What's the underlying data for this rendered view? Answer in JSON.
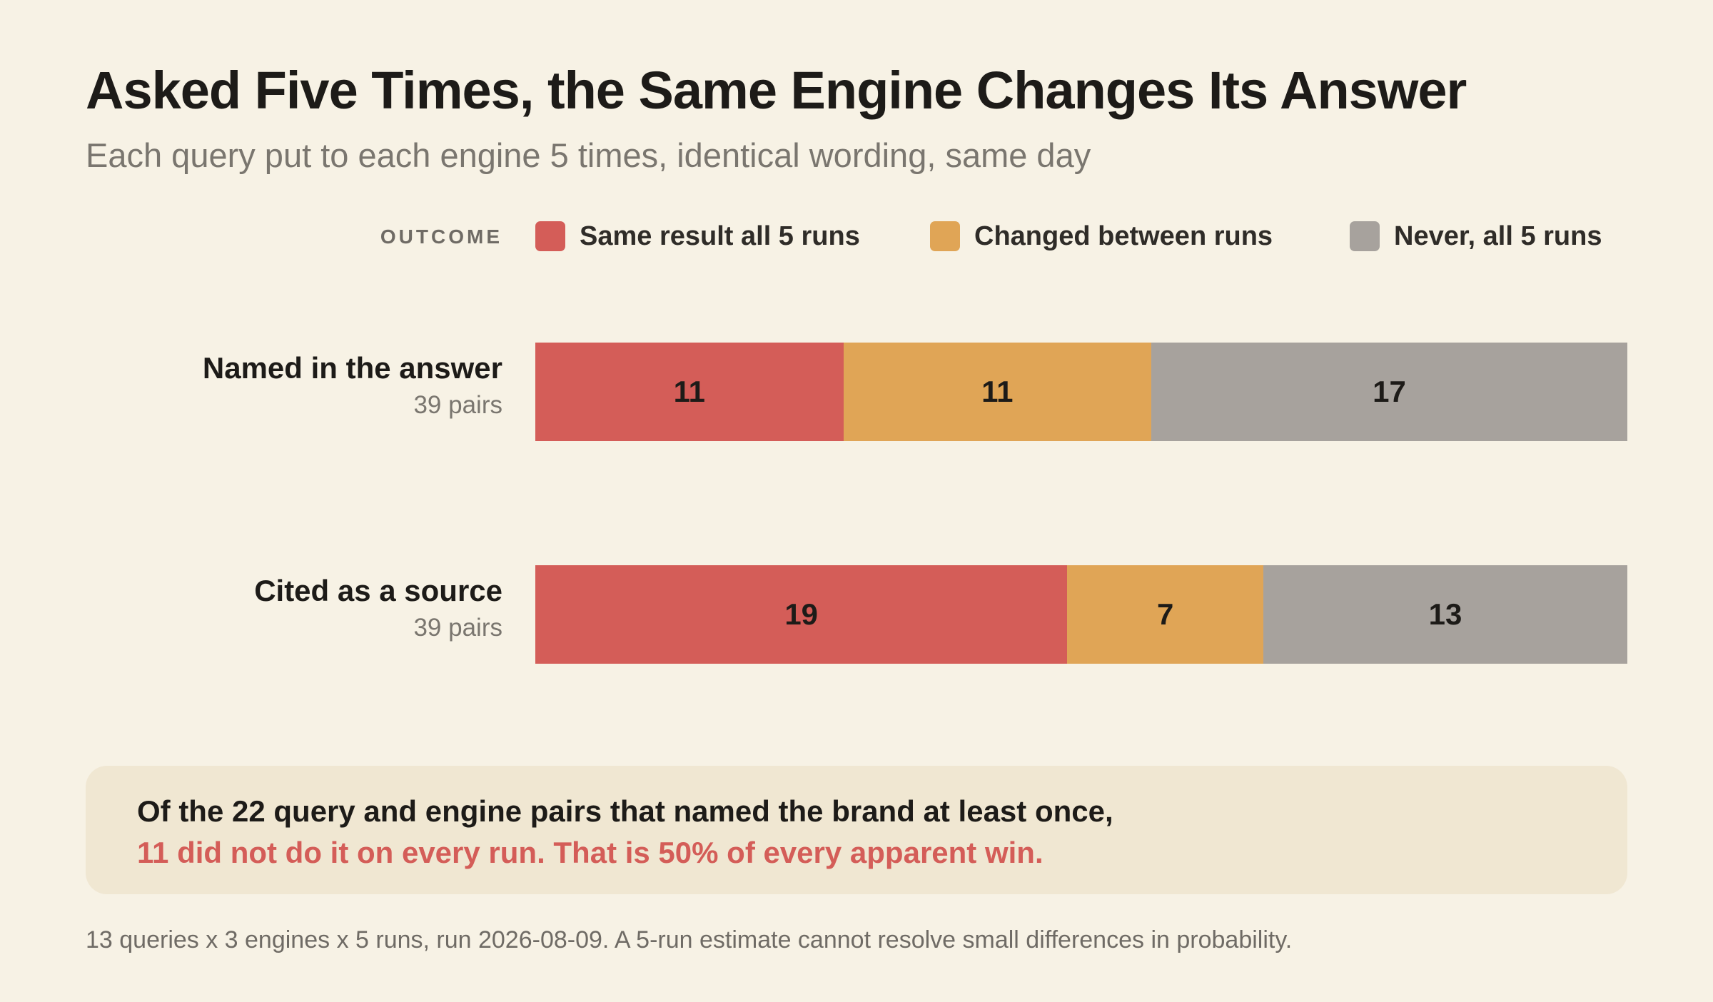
{
  "title": "Asked Five Times, the Same Engine Changes Its Answer",
  "subtitle": "Each query put to each engine 5 times, identical wording, same day",
  "legend": {
    "title": "OUTCOME",
    "items": [
      {
        "label": "Same result all 5 runs",
        "color": "#d45d58"
      },
      {
        "label": "Changed between runs",
        "color": "#e0a556"
      },
      {
        "label": "Never, all 5 runs",
        "color": "#a7a29d"
      }
    ]
  },
  "chart_data": {
    "type": "bar",
    "orientation": "horizontal",
    "stacked": true,
    "categories": [
      "Named in the answer",
      "Cited as a source"
    ],
    "category_notes": [
      "39 pairs",
      "39 pairs"
    ],
    "series": [
      {
        "name": "Same result all 5 runs",
        "values": [
          11,
          19
        ],
        "color": "#d45d58"
      },
      {
        "name": "Changed between runs",
        "values": [
          11,
          7
        ],
        "color": "#e0a556"
      },
      {
        "name": "Never, all 5 runs",
        "values": [
          17,
          13
        ],
        "color": "#a7a29d"
      }
    ],
    "legend_position": "top",
    "grid": false
  },
  "callout": {
    "line1": "Of the 22 query and engine pairs that named the brand at least once,",
    "line2": "11 did not do it on every run. That is 50% of every apparent win."
  },
  "footnote": "13 queries x 3 engines x 5 runs, run 2026-08-09. A 5-run estimate cannot resolve small differences in probability."
}
